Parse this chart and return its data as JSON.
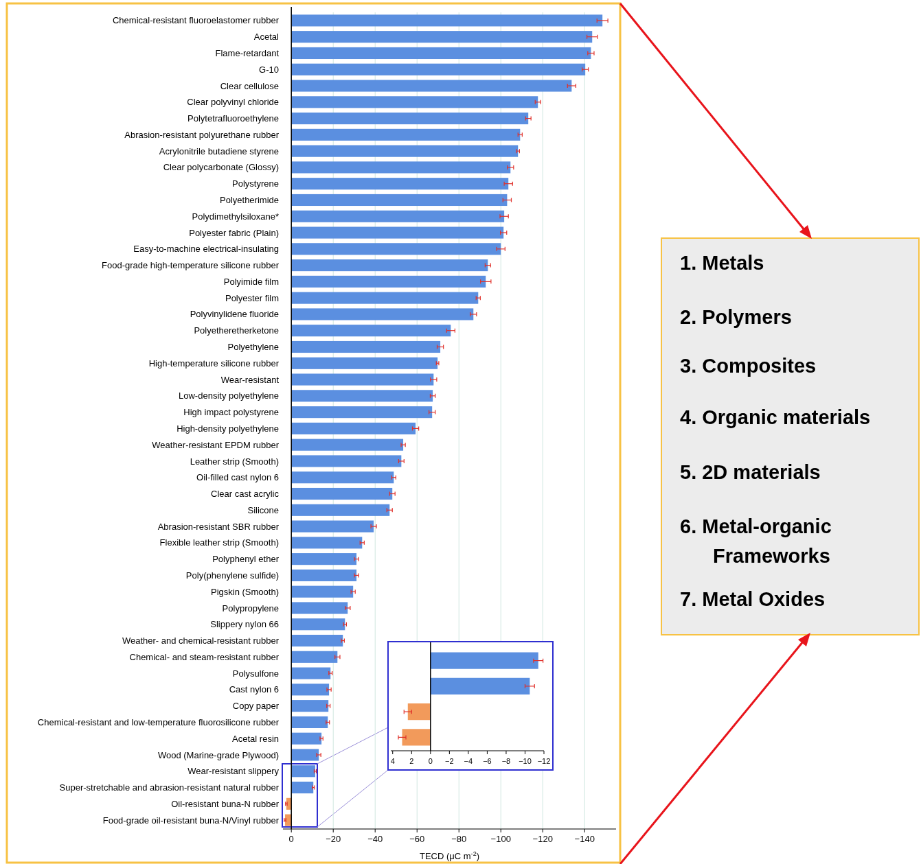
{
  "chart_data": [
    {
      "type": "bar",
      "orientation": "horizontal",
      "xlabel": "TECD (μC m$^{-2}$)",
      "grid": "x",
      "xlim": [
        4,
        -155
      ],
      "xticks": [
        0,
        -20,
        -40,
        -60,
        -80,
        -100,
        -120,
        -140
      ],
      "categories": [
        "Chemical-resistant fluoroelastomer rubber",
        "Acetal",
        "Flame-retardant",
        "G-10",
        "Clear cellulose",
        "Clear polyvinyl chloride",
        "Polytetrafluoroethylene",
        "Abrasion-resistant polyurethane rubber",
        "Acrylonitrile butadiene styrene",
        "Clear polycarbonate (Glossy)",
        "Polystyrene",
        "Polyetherimide",
        "Polydimethylsiloxane*",
        "Polyester fabric (Plain)",
        "Easy-to-machine electrical-insulating",
        "Food-grade high-temperature silicone rubber",
        "Polyimide film",
        "Polyester film",
        "Polyvinylidene fluoride",
        "Polyetheretherketone",
        "Polyethylene",
        "High-temperature silicone rubber",
        "Wear-resistant",
        "Low-density polyethylene",
        "High impact polystyrene",
        "High-density polyethylene",
        "Weather-resistant EPDM rubber",
        "Leather strip (Smooth)",
        "Oil-filled cast nylon 6",
        "Clear cast acrylic",
        "Silicone",
        "Abrasion-resistant SBR rubber",
        "Flexible leather strip (Smooth)",
        "Polyphenyl ether",
        "Poly(phenylene sulfide)",
        "Pigskin (Smooth)",
        "Polypropylene",
        "Slippery nylon 66",
        "Weather- and chemical-resistant rubber",
        "Chemical- and steam-resistant rubber",
        "Polysulfone",
        "Cast nylon 6",
        "Copy paper",
        "Chemical-resistant and low-temperature fluorosilicone rubber",
        "Acetal resin",
        "Wood (Marine-grade Plywood)",
        "Wear-resistant slippery",
        "Super-stretchable and abrasion-resistant natural rubber",
        "Oil-resistant buna-N rubber",
        "Food-grade oil-resistant buna-N/Vinyl rubber"
      ],
      "values": [
        -148.5,
        -143.6,
        -143,
        -140.3,
        -133.8,
        -117.7,
        -113.1,
        -109.2,
        -108.2,
        -104.6,
        -103.6,
        -103,
        -101.6,
        -101.3,
        -100,
        -93.8,
        -92.8,
        -89.2,
        -86.9,
        -76.1,
        -71.1,
        -69.8,
        -67.9,
        -67.5,
        -67.2,
        -59.3,
        -53.4,
        -52.5,
        -48.9,
        -48.2,
        -46.9,
        -39.3,
        -33.8,
        -31.1,
        -31.1,
        -29.5,
        -26.9,
        -25.6,
        -24.6,
        -22,
        -18.7,
        -18,
        -17.7,
        -17.4,
        -14.4,
        -13.1,
        -11.4,
        -10.5,
        2.4,
        3
      ],
      "errors": [
        2.6,
        2.5,
        1.5,
        1.5,
        2,
        1.3,
        1.3,
        1,
        0.7,
        1.5,
        2,
        2,
        2,
        1.5,
        2,
        1.3,
        2.5,
        1,
        1.5,
        2,
        1.5,
        0.6,
        1.5,
        1.2,
        1.5,
        1.5,
        1,
        1.3,
        1,
        1.3,
        1.3,
        1.3,
        1,
        1,
        1,
        1,
        1.2,
        0.7,
        0.7,
        1.2,
        0.8,
        1,
        0.8,
        0.8,
        0.7,
        1,
        0.5,
        0.5,
        0.4,
        0.4
      ],
      "colors": [
        "#5b8fe0",
        "#5b8fe0",
        "#5b8fe0",
        "#5b8fe0",
        "#5b8fe0",
        "#5b8fe0",
        "#5b8fe0",
        "#5b8fe0",
        "#5b8fe0",
        "#5b8fe0",
        "#5b8fe0",
        "#5b8fe0",
        "#5b8fe0",
        "#5b8fe0",
        "#5b8fe0",
        "#5b8fe0",
        "#5b8fe0",
        "#5b8fe0",
        "#5b8fe0",
        "#5b8fe0",
        "#5b8fe0",
        "#5b8fe0",
        "#5b8fe0",
        "#5b8fe0",
        "#5b8fe0",
        "#5b8fe0",
        "#5b8fe0",
        "#5b8fe0",
        "#5b8fe0",
        "#5b8fe0",
        "#5b8fe0",
        "#5b8fe0",
        "#5b8fe0",
        "#5b8fe0",
        "#5b8fe0",
        "#5b8fe0",
        "#5b8fe0",
        "#5b8fe0",
        "#5b8fe0",
        "#5b8fe0",
        "#5b8fe0",
        "#5b8fe0",
        "#5b8fe0",
        "#5b8fe0",
        "#5b8fe0",
        "#5b8fe0",
        "#5b8fe0",
        "#5b8fe0",
        "#f29a5b",
        "#f29a5b"
      ]
    },
    {
      "type": "bar",
      "orientation": "horizontal",
      "tick_labels": "x",
      "xlim": [
        4.2,
        -12
      ],
      "xticks": [
        4,
        2,
        0,
        -2,
        -4,
        -6,
        -8,
        -10,
        -12
      ],
      "categories": [
        null,
        null,
        null,
        null
      ],
      "values": [
        -11.4,
        -10.5,
        2.4,
        3
      ],
      "errors": [
        0.5,
        0.5,
        0.4,
        0.4
      ],
      "colors": [
        "#5b8fe0",
        "#5b8fe0",
        "#f29a5b",
        "#f29a5b"
      ]
    },
    {
      "type": "other",
      "annotations": [
        "1. Metals",
        "2. Polymers",
        "3. Composites",
        "4. Organic materials",
        "5. 2D materials",
        "6. Metal-organic Frameworks",
        "7. Metal Oxides"
      ]
    }
  ]
}
